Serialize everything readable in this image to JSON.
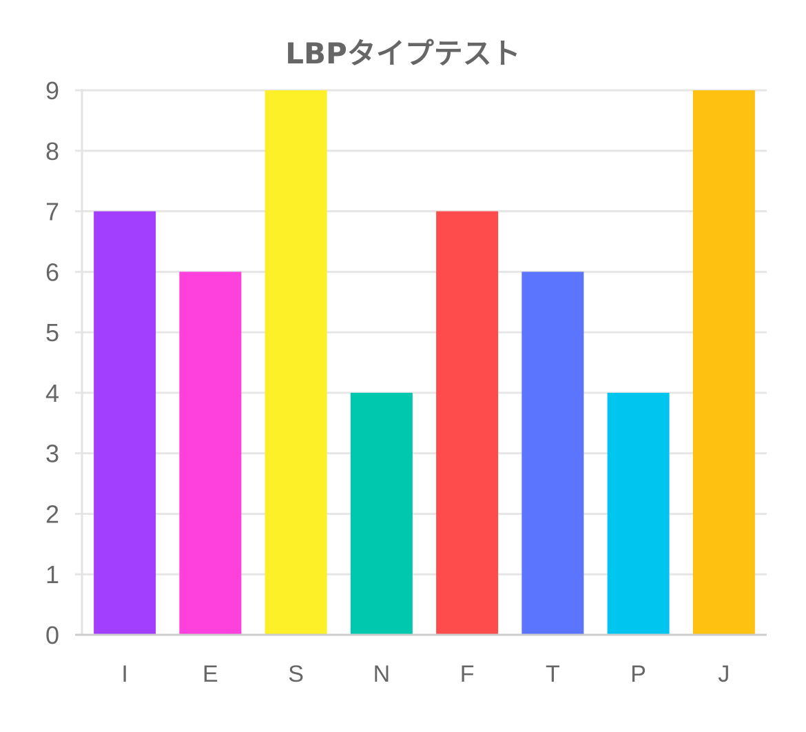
{
  "chart_data": {
    "type": "bar",
    "title": "LBPタイプテスト",
    "categories": [
      "I",
      "E",
      "S",
      "N",
      "F",
      "T",
      "P",
      "J"
    ],
    "values": [
      7,
      6,
      9,
      4,
      7,
      6,
      4,
      9
    ],
    "bar_colors": [
      "#a23ffe",
      "#fe41dd",
      "#fef028",
      "#00c8ae",
      "#fe4c4c",
      "#5b75fe",
      "#00c5ef",
      "#fec112"
    ],
    "ylim": [
      0,
      9
    ],
    "yticks": [
      "0",
      "1",
      "2",
      "3",
      "4",
      "5",
      "6",
      "7",
      "8",
      "9"
    ],
    "xlabel": "",
    "ylabel": "",
    "grid": true
  }
}
